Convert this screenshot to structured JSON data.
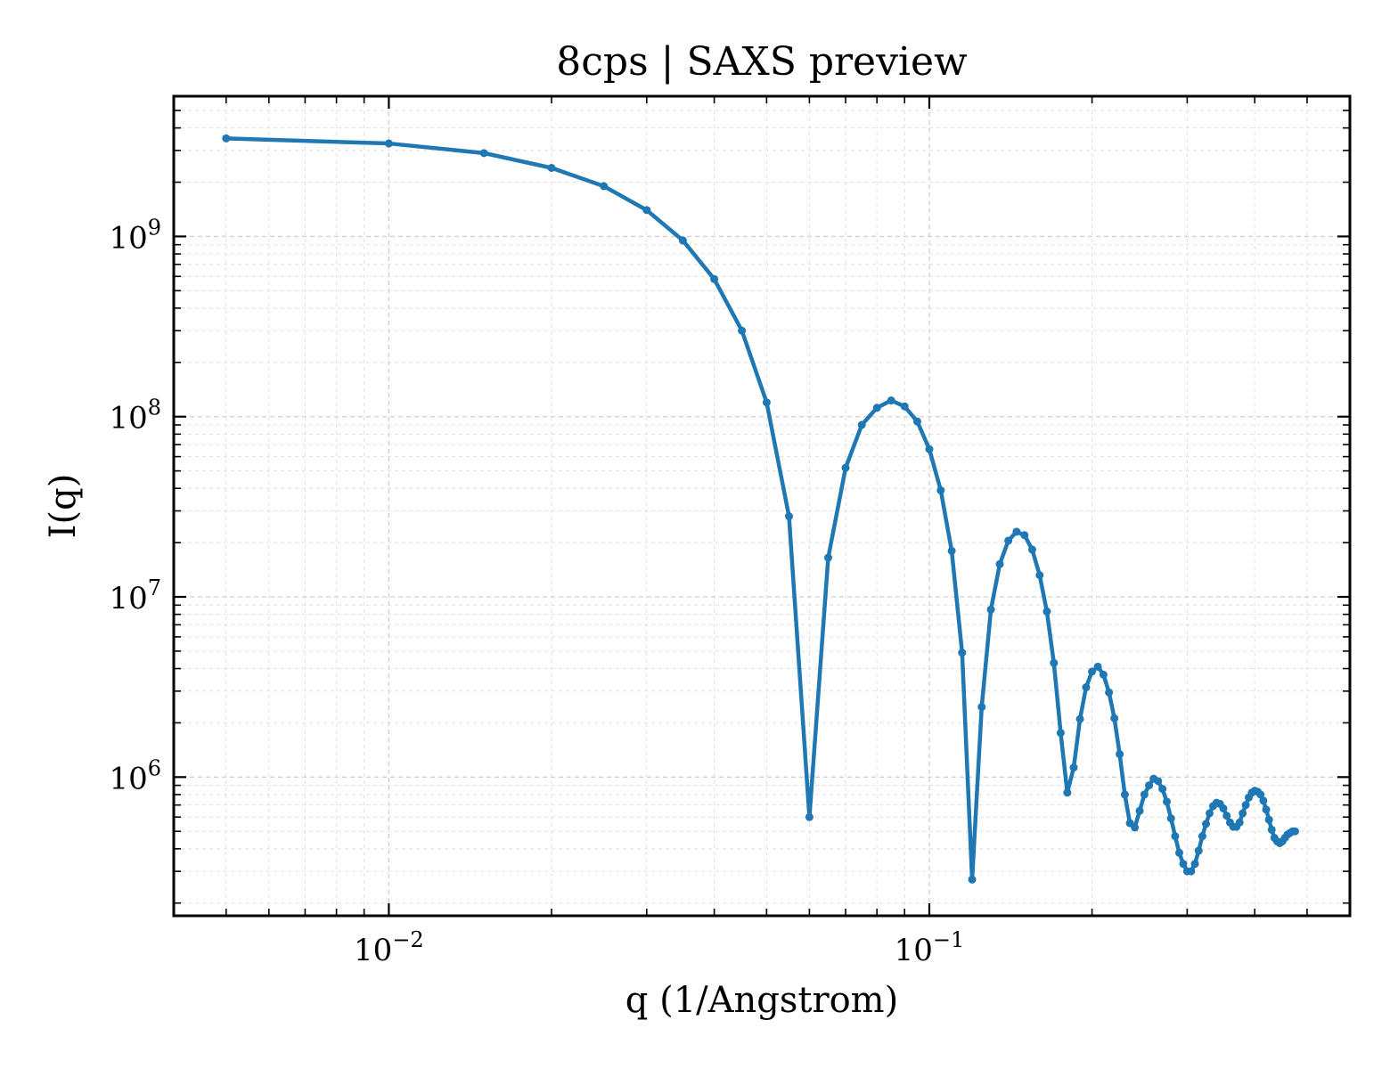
{
  "colors": {
    "series": "#1f77b4",
    "background": "#ffffff"
  },
  "chart_data": {
    "type": "line",
    "title": "8cps | SAXS preview",
    "xlabel": "q (1/Angstrom)",
    "ylabel": "I(q)",
    "xscale": "log",
    "yscale": "log",
    "xlim": [
      0.004,
      0.6
    ],
    "ylim": [
      170000,
      6000000000
    ],
    "grid": true,
    "legend": "none",
    "x_ticks": [
      {
        "base": "10",
        "exp": "−2",
        "value": 0.01
      },
      {
        "base": "10",
        "exp": "−1",
        "value": 0.1
      }
    ],
    "y_ticks": [
      {
        "base": "10",
        "exp": "6",
        "value": 1000000
      },
      {
        "base": "10",
        "exp": "7",
        "value": 10000000
      },
      {
        "base": "10",
        "exp": "8",
        "value": 100000000
      },
      {
        "base": "10",
        "exp": "9",
        "value": 1000000000
      }
    ],
    "series": [
      {
        "color": "#1f77b4",
        "marker": "circle",
        "points": [
          [
            0.005,
            3500000000
          ],
          [
            0.01,
            3280000000
          ],
          [
            0.015,
            2900000000
          ],
          [
            0.02,
            2400000000
          ],
          [
            0.025,
            1900000000
          ],
          [
            0.03,
            1400000000
          ],
          [
            0.035,
            950000000
          ],
          [
            0.04,
            580000000
          ],
          [
            0.045,
            300000000
          ],
          [
            0.05,
            120000000
          ],
          [
            0.055,
            28000000
          ],
          [
            0.06,
            600000
          ],
          [
            0.065,
            16500000
          ],
          [
            0.07,
            52000000
          ],
          [
            0.075,
            90000000
          ],
          [
            0.08,
            112000000
          ],
          [
            0.085,
            123000000
          ],
          [
            0.09,
            114000000
          ],
          [
            0.095,
            94000000
          ],
          [
            0.1,
            66000000
          ],
          [
            0.105,
            39000000
          ],
          [
            0.11,
            18000000
          ],
          [
            0.115,
            4900000
          ],
          [
            0.12,
            270000
          ],
          [
            0.125,
            2450000
          ],
          [
            0.13,
            8500000
          ],
          [
            0.135,
            15200000
          ],
          [
            0.14,
            20500000
          ],
          [
            0.145,
            23000000
          ],
          [
            0.15,
            22000000
          ],
          [
            0.155,
            18300000
          ],
          [
            0.16,
            13200000
          ],
          [
            0.165,
            8300000
          ],
          [
            0.17,
            4300000
          ],
          [
            0.175,
            1760000
          ],
          [
            0.18,
            820000
          ],
          [
            0.185,
            1130000
          ],
          [
            0.19,
            2100000
          ],
          [
            0.195,
            3150000
          ],
          [
            0.2,
            3850000
          ],
          [
            0.205,
            4100000
          ],
          [
            0.21,
            3700000
          ],
          [
            0.215,
            2950000
          ],
          [
            0.22,
            2120000
          ],
          [
            0.225,
            1340000
          ],
          [
            0.23,
            800000
          ],
          [
            0.235,
            555000
          ],
          [
            0.24,
            525000
          ],
          [
            0.245,
            650000
          ],
          [
            0.25,
            800000
          ],
          [
            0.255,
            900000
          ],
          [
            0.26,
            980000
          ],
          [
            0.265,
            950000
          ],
          [
            0.27,
            860000
          ],
          [
            0.275,
            730000
          ],
          [
            0.28,
            590000
          ],
          [
            0.285,
            470000
          ],
          [
            0.29,
            380000
          ],
          [
            0.295,
            330000
          ],
          [
            0.3,
            300000
          ],
          [
            0.305,
            300000
          ],
          [
            0.31,
            330000
          ],
          [
            0.315,
            390000
          ],
          [
            0.32,
            470000
          ],
          [
            0.325,
            550000
          ],
          [
            0.33,
            630000
          ],
          [
            0.335,
            690000
          ],
          [
            0.34,
            720000
          ],
          [
            0.345,
            710000
          ],
          [
            0.35,
            670000
          ],
          [
            0.355,
            610000
          ],
          [
            0.36,
            560000
          ],
          [
            0.365,
            530000
          ],
          [
            0.37,
            530000
          ],
          [
            0.375,
            560000
          ],
          [
            0.38,
            630000
          ],
          [
            0.385,
            700000
          ],
          [
            0.39,
            770000
          ],
          [
            0.395,
            820000
          ],
          [
            0.4,
            840000
          ],
          [
            0.405,
            830000
          ],
          [
            0.41,
            800000
          ],
          [
            0.415,
            740000
          ],
          [
            0.42,
            660000
          ],
          [
            0.425,
            580000
          ],
          [
            0.43,
            510000
          ],
          [
            0.435,
            460000
          ],
          [
            0.44,
            440000
          ],
          [
            0.445,
            430000
          ],
          [
            0.45,
            440000
          ],
          [
            0.455,
            460000
          ],
          [
            0.46,
            480000
          ],
          [
            0.465,
            490000
          ],
          [
            0.47,
            500000
          ],
          [
            0.475,
            500000
          ]
        ]
      }
    ]
  }
}
